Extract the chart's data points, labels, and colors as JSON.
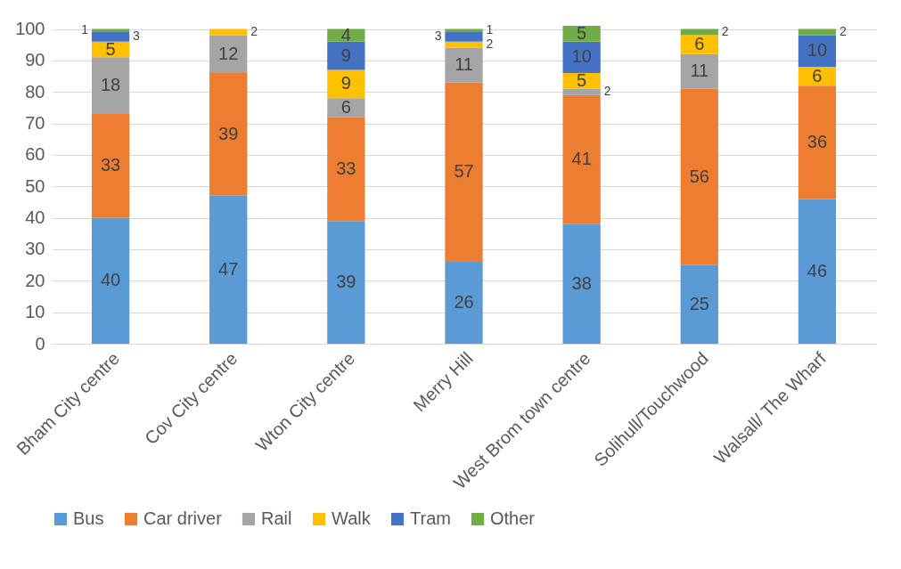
{
  "chart_data": {
    "type": "bar",
    "stacked": true,
    "data_labels": true,
    "grid": "y",
    "legend": "bottom",
    "categories": [
      "Bham City centre",
      "Cov City centre",
      "Wton City centre",
      "Merry Hill",
      "West Brom town centre",
      "Solihull/Touchwood",
      "Walsall/ The Wharf"
    ],
    "ylim": [
      0,
      101
    ],
    "yticks": [
      0,
      10,
      20,
      30,
      40,
      50,
      60,
      70,
      80,
      90,
      100
    ],
    "series": [
      {
        "name": "Bus",
        "color": "#5b9bd5",
        "values": [
          40,
          47,
          39,
          26,
          38,
          25,
          46
        ]
      },
      {
        "name": "Car driver",
        "color": "#ed7d31",
        "values": [
          33,
          39,
          33,
          57,
          41,
          56,
          36
        ]
      },
      {
        "name": "Rail",
        "color": "#a5a5a5",
        "values": [
          18,
          12,
          6,
          11,
          2,
          11,
          null
        ]
      },
      {
        "name": "Walk",
        "color": "#ffc000",
        "values": [
          5,
          2,
          9,
          2,
          5,
          6,
          6
        ]
      },
      {
        "name": "Tram",
        "color": "#4472c4",
        "values": [
          3,
          null,
          9,
          3,
          10,
          null,
          10
        ]
      },
      {
        "name": "Other",
        "color": "#70ad47",
        "values": [
          1,
          null,
          4,
          1,
          5,
          2,
          2
        ]
      }
    ]
  }
}
